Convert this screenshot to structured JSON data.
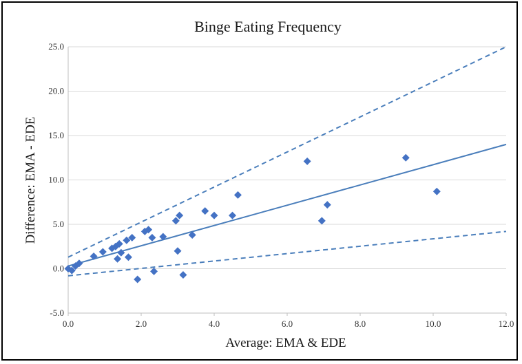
{
  "chart_data": {
    "type": "scatter",
    "title": "Binge Eating Frequency",
    "xlabel": "Average:  EMA & EDE",
    "ylabel": "Difference:  EMA - EDE",
    "xlim": [
      0,
      12
    ],
    "ylim": [
      -5,
      25
    ],
    "x_ticks": [
      0,
      2,
      4,
      6,
      8,
      10,
      12
    ],
    "x_tick_labels": [
      "0.0",
      "2.0",
      "4.0",
      "6.0",
      "8.0",
      "10.0",
      "12.0"
    ],
    "y_ticks": [
      -5,
      0,
      5,
      10,
      15,
      20,
      25
    ],
    "y_tick_labels": [
      "-5.0",
      "0.0",
      "5.0",
      "10.0",
      "15.0",
      "20.0",
      "25.0"
    ],
    "grid": "horizontal",
    "legend": "none",
    "points": [
      {
        "x": 0.0,
        "y": 0.0
      },
      {
        "x": 0.1,
        "y": -0.2
      },
      {
        "x": 0.2,
        "y": 0.3
      },
      {
        "x": 0.3,
        "y": 0.6
      },
      {
        "x": 0.7,
        "y": 1.4
      },
      {
        "x": 0.95,
        "y": 1.9
      },
      {
        "x": 1.2,
        "y": 2.3
      },
      {
        "x": 1.3,
        "y": 2.5
      },
      {
        "x": 1.35,
        "y": 1.1
      },
      {
        "x": 1.4,
        "y": 2.8
      },
      {
        "x": 1.45,
        "y": 1.8
      },
      {
        "x": 1.6,
        "y": 3.2
      },
      {
        "x": 1.65,
        "y": 1.3
      },
      {
        "x": 1.75,
        "y": 3.5
      },
      {
        "x": 1.9,
        "y": -1.2
      },
      {
        "x": 2.1,
        "y": 4.2
      },
      {
        "x": 2.2,
        "y": 4.4
      },
      {
        "x": 2.3,
        "y": 3.5
      },
      {
        "x": 2.35,
        "y": -0.3
      },
      {
        "x": 2.6,
        "y": 3.6
      },
      {
        "x": 2.95,
        "y": 5.4
      },
      {
        "x": 3.0,
        "y": 2.0
      },
      {
        "x": 3.05,
        "y": 6.0
      },
      {
        "x": 3.15,
        "y": -0.7
      },
      {
        "x": 3.4,
        "y": 3.8
      },
      {
        "x": 3.75,
        "y": 6.5
      },
      {
        "x": 4.0,
        "y": 6.0
      },
      {
        "x": 4.5,
        "y": 6.0
      },
      {
        "x": 4.65,
        "y": 8.3
      },
      {
        "x": 6.55,
        "y": 12.1
      },
      {
        "x": 6.95,
        "y": 5.4
      },
      {
        "x": 7.1,
        "y": 7.2
      },
      {
        "x": 9.25,
        "y": 12.5
      },
      {
        "x": 10.1,
        "y": 8.7
      }
    ],
    "lines": [
      {
        "style": "solid",
        "x": [
          0,
          12
        ],
        "y": [
          0.3,
          14.0
        ]
      },
      {
        "style": "dashed",
        "x": [
          0,
          12
        ],
        "y": [
          1.3,
          25.0
        ]
      },
      {
        "style": "dashed",
        "x": [
          0,
          12
        ],
        "y": [
          -0.8,
          4.2
        ]
      }
    ],
    "colors": {
      "points": "#4472C4",
      "lines": "#4A7EBB",
      "grid": "#D9D9D9",
      "axis": "#BFBFBF"
    }
  }
}
